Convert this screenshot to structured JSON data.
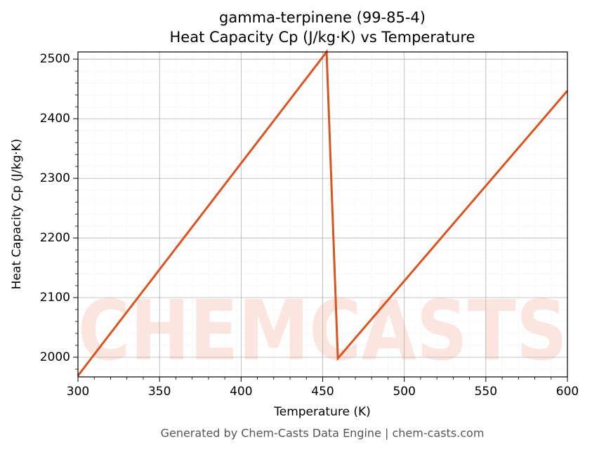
{
  "chart_data": {
    "type": "line",
    "title": "gamma-terpinene (99-85-4)",
    "subtitle": "Heat Capacity Cp (J/kg·K) vs Temperature",
    "x_label": "Temperature (K)",
    "y_label": "Heat Capacity Cp (J/kg·K)",
    "x": [
      300,
      452.4,
      459.3,
      600
    ],
    "values": [
      1969,
      2512,
      1998,
      2447
    ],
    "color": "#d9541e",
    "xlim": [
      300,
      600
    ],
    "xticks": [
      300,
      350,
      400,
      450,
      500,
      550,
      600
    ],
    "ylim": [
      1967,
      2512
    ],
    "yticks": [
      2000,
      2100,
      2200,
      2300,
      2400,
      2500
    ],
    "grid": true,
    "minor_grid": true,
    "watermark": "CHEMCASTS",
    "footer": "Generated by Chem-Casts Data Engine | chem-casts.com"
  }
}
